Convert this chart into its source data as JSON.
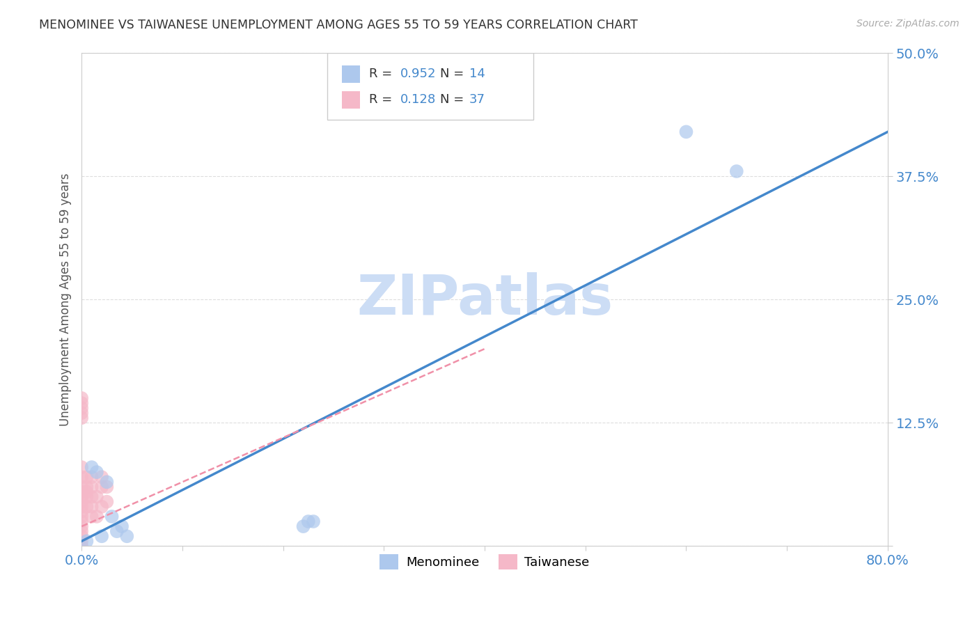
{
  "title": "MENOMINEE VS TAIWANESE UNEMPLOYMENT AMONG AGES 55 TO 59 YEARS CORRELATION CHART",
  "source": "Source: ZipAtlas.com",
  "xlabel": "",
  "ylabel": "Unemployment Among Ages 55 to 59 years",
  "xlim": [
    0,
    0.8
  ],
  "ylim": [
    0,
    0.5
  ],
  "xticks": [
    0.0,
    0.1,
    0.2,
    0.3,
    0.4,
    0.5,
    0.6,
    0.7,
    0.8
  ],
  "yticks": [
    0.0,
    0.125,
    0.25,
    0.375,
    0.5
  ],
  "menominee_R": 0.952,
  "menominee_N": 14,
  "taiwanese_R": 0.128,
  "taiwanese_N": 37,
  "menominee_color": "#adc8ed",
  "menominee_edge": "#adc8ed",
  "taiwanese_color": "#f5b8c8",
  "taiwanese_edge": "#f5b8c8",
  "menominee_line_color": "#4488cc",
  "taiwanese_line_color": "#f090a8",
  "watermark": "ZIPatlas",
  "watermark_color": "#ccddf5",
  "menominee_x": [
    0.005,
    0.01,
    0.015,
    0.02,
    0.025,
    0.03,
    0.035,
    0.04,
    0.045,
    0.22,
    0.225,
    0.23,
    0.6,
    0.65
  ],
  "menominee_y": [
    0.005,
    0.08,
    0.075,
    0.01,
    0.065,
    0.03,
    0.015,
    0.02,
    0.01,
    0.02,
    0.025,
    0.025,
    0.42,
    0.38
  ],
  "taiwanese_x": [
    0.0,
    0.0,
    0.0,
    0.0,
    0.0,
    0.0,
    0.0,
    0.0,
    0.0,
    0.0,
    0.0,
    0.0,
    0.0,
    0.0,
    0.0,
    0.0,
    0.0,
    0.0,
    0.0,
    0.0,
    0.005,
    0.005,
    0.005,
    0.005,
    0.005,
    0.01,
    0.01,
    0.01,
    0.01,
    0.01,
    0.015,
    0.015,
    0.02,
    0.02,
    0.02,
    0.025,
    0.025
  ],
  "taiwanese_y": [
    0.0,
    0.005,
    0.01,
    0.015,
    0.02,
    0.025,
    0.03,
    0.035,
    0.04,
    0.045,
    0.05,
    0.055,
    0.06,
    0.07,
    0.08,
    0.13,
    0.135,
    0.14,
    0.145,
    0.15,
    0.04,
    0.05,
    0.055,
    0.06,
    0.07,
    0.03,
    0.04,
    0.05,
    0.06,
    0.07,
    0.03,
    0.05,
    0.04,
    0.06,
    0.07,
    0.045,
    0.06
  ],
  "menominee_line_x": [
    0.0,
    0.8
  ],
  "menominee_line_y": [
    0.005,
    0.42
  ],
  "taiwanese_line_x": [
    0.0,
    0.4
  ],
  "taiwanese_line_y": [
    0.02,
    0.2
  ]
}
